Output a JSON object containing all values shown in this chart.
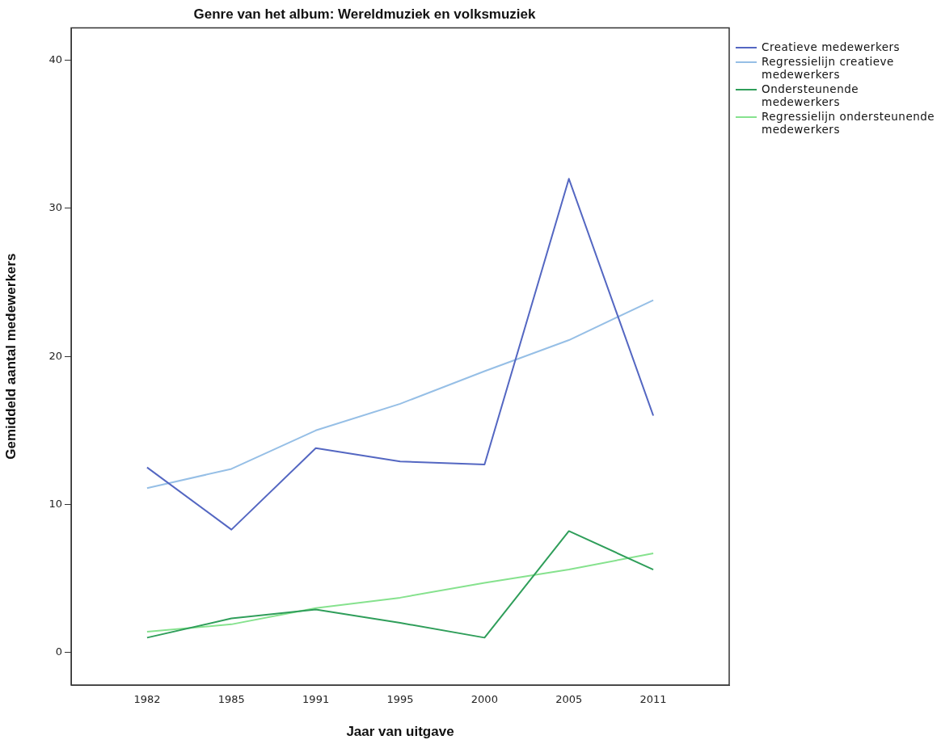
{
  "chart_data": {
    "type": "line",
    "title": "Genre van het album: Wereldmuziek en volksmuziek",
    "xlabel": "Jaar van uitgave",
    "ylabel": "Gemiddeld aantal medewerkers",
    "categories": [
      "1982",
      "1985",
      "1991",
      "1995",
      "2000",
      "2005",
      "2011"
    ],
    "series": [
      {
        "name": "Creatieve medewerkers",
        "color": "#5467c2",
        "values": [
          12.5,
          8.3,
          13.8,
          12.9,
          12.7,
          32.0,
          16.0
        ]
      },
      {
        "name": "Regressielijn creatieve medewerkers",
        "color": "#96bfe6",
        "values": [
          11.1,
          12.4,
          15.0,
          16.8,
          19.0,
          21.1,
          23.8
        ]
      },
      {
        "name": "Ondersteunende medewerkers",
        "color": "#2f9e5a",
        "values": [
          1.0,
          2.3,
          2.9,
          2.0,
          1.0,
          8.2,
          5.6
        ]
      },
      {
        "name": "Regressielijn ondersteunende medewerkers",
        "color": "#86e28e",
        "values": [
          1.4,
          1.9,
          3.0,
          3.7,
          4.7,
          5.6,
          6.7
        ]
      }
    ],
    "ylim": [
      -2.2,
      42.2
    ],
    "yticks": [
      0,
      10,
      20,
      30,
      40
    ],
    "grid": false,
    "legend": "top right",
    "marker": "none",
    "line_style": "solid"
  }
}
